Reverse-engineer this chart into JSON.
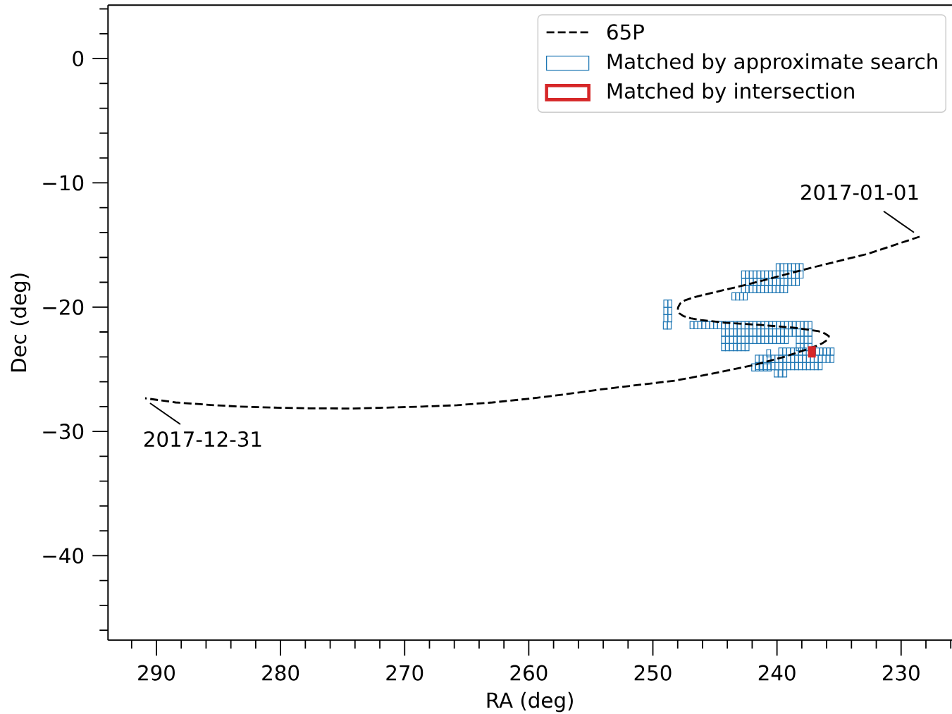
{
  "chart_data": {
    "type": "scatter",
    "xlabel": "RA (deg)",
    "ylabel": "Dec (deg)",
    "xlim": [
      293.9,
      225.9
    ],
    "ylim": [
      -46.8,
      4.3
    ],
    "xticks": [
      {
        "value": 292,
        "label": null
      },
      290,
      {
        "value": 288,
        "label": null
      },
      {
        "value": 286,
        "label": null
      },
      {
        "value": 284,
        "label": null
      },
      {
        "value": 282,
        "label": null
      },
      280,
      {
        "value": 278,
        "label": null
      },
      {
        "value": 276,
        "label": null
      },
      {
        "value": 274,
        "label": null
      },
      {
        "value": 272,
        "label": null
      },
      270,
      {
        "value": 268,
        "label": null
      },
      {
        "value": 266,
        "label": null
      },
      {
        "value": 264,
        "label": null
      },
      {
        "value": 262,
        "label": null
      },
      260,
      {
        "value": 258,
        "label": null
      },
      {
        "value": 256,
        "label": null
      },
      {
        "value": 254,
        "label": null
      },
      {
        "value": 252,
        "label": null
      },
      250,
      {
        "value": 248,
        "label": null
      },
      {
        "value": 246,
        "label": null
      },
      {
        "value": 244,
        "label": null
      },
      {
        "value": 242,
        "label": null
      },
      240,
      {
        "value": 238,
        "label": null
      },
      {
        "value": 236,
        "label": null
      },
      {
        "value": 234,
        "label": null
      },
      {
        "value": 232,
        "label": null
      },
      230,
      {
        "value": 228,
        "label": null
      },
      {
        "value": 226,
        "label": null
      }
    ],
    "yticks": [
      {
        "value": 4,
        "label": null
      },
      {
        "value": 2,
        "label": null
      },
      0,
      {
        "value": -2,
        "label": null
      },
      {
        "value": -4,
        "label": null
      },
      {
        "value": -6,
        "label": null
      },
      {
        "value": -8,
        "label": null
      },
      {
        "value": -10,
        "label": "−10"
      },
      {
        "value": -12,
        "label": null
      },
      {
        "value": -14,
        "label": null
      },
      {
        "value": -16,
        "label": null
      },
      {
        "value": -18,
        "label": null
      },
      {
        "value": -20,
        "label": "−20"
      },
      {
        "value": -22,
        "label": null
      },
      {
        "value": -24,
        "label": null
      },
      {
        "value": -26,
        "label": null
      },
      {
        "value": -28,
        "label": null
      },
      {
        "value": -30,
        "label": "−30"
      },
      {
        "value": -32,
        "label": null
      },
      {
        "value": -34,
        "label": null
      },
      {
        "value": -36,
        "label": null
      },
      {
        "value": -38,
        "label": null
      },
      {
        "value": -40,
        "label": "−40"
      },
      {
        "value": -42,
        "label": null
      },
      {
        "value": -44,
        "label": null
      },
      {
        "value": -46,
        "label": null
      }
    ],
    "legend": "top right",
    "series": [
      {
        "name": "65P",
        "type": "line",
        "color": "#000000",
        "line_style": "dashed",
        "x": [
          228.51,
          232.68,
          237.78,
          242.32,
          245.15,
          246.67,
          247.42,
          247.8,
          247.97,
          247.99,
          247.88,
          247.52,
          246.86,
          246.1,
          244.21,
          241.37,
          238.54,
          236.65,
          236.12,
          235.82,
          235.93,
          236.31,
          236.84,
          237.78,
          239.48,
          241.94,
          245.16,
          248.18,
          251.58,
          254.42,
          257.25,
          260.09,
          262.93,
          265.76,
          268.6,
          272.0,
          274.27,
          277.67,
          279.94,
          283.35,
          285.62,
          288.45,
          290.91
        ],
        "values": [
          -14.33,
          -15.71,
          -16.97,
          -18.16,
          -18.83,
          -19.2,
          -19.45,
          -19.71,
          -20.02,
          -20.24,
          -20.49,
          -20.73,
          -20.92,
          -21.04,
          -21.25,
          -21.43,
          -21.66,
          -21.94,
          -22.13,
          -22.34,
          -22.62,
          -22.89,
          -23.13,
          -23.46,
          -24.02,
          -24.68,
          -25.34,
          -25.91,
          -26.31,
          -26.65,
          -27.04,
          -27.38,
          -27.67,
          -27.89,
          -28.0,
          -28.1,
          -28.16,
          -28.14,
          -28.1,
          -28.0,
          -27.87,
          -27.67,
          -27.33
        ]
      },
      {
        "name": "Matched by approximate search",
        "color": "#1f77b4",
        "marker": "square",
        "x": [
          239.91,
          239.6,
          239.29,
          238.98,
          238.67,
          238.36,
          238.05,
          238.05,
          238.36,
          238.67,
          238.98,
          239.29,
          239.6,
          239.91,
          240.22,
          240.53,
          240.84,
          241.15,
          241.46,
          241.77,
          242.08,
          242.39,
          242.7,
          238.35,
          238.66,
          238.97,
          239.28,
          239.59,
          239.9,
          240.21,
          240.52,
          240.83,
          241.14,
          241.45,
          241.76,
          242.07,
          242.38,
          242.69,
          239.3,
          239.61,
          239.92,
          240.23,
          240.54,
          240.85,
          241.16,
          241.47,
          241.78,
          242.09,
          242.4,
          242.71,
          242.55,
          242.86,
          243.17,
          243.48,
          248.96,
          248.63,
          248.96,
          248.63,
          248.96,
          248.63,
          249.0,
          248.68,
          246.85,
          246.53,
          246.22,
          245.9,
          245.58,
          245.27,
          244.95,
          244.63,
          244.31,
          244.0,
          243.68,
          243.36,
          243.05,
          242.73,
          242.41,
          242.1,
          241.78,
          241.46,
          241.14,
          240.83,
          240.51,
          240.19,
          239.88,
          239.56,
          239.24,
          238.93,
          238.61,
          238.29,
          237.97,
          237.66,
          237.34,
          244.31,
          244.0,
          243.68,
          243.36,
          243.05,
          242.73,
          242.41,
          242.1,
          241.78,
          241.46,
          241.14,
          240.83,
          240.51,
          240.19,
          239.88,
          239.56,
          239.24,
          238.93,
          238.61,
          238.29,
          237.97,
          237.66,
          237.34,
          244.31,
          244.0,
          243.68,
          243.36,
          243.05,
          242.73,
          242.41,
          242.1,
          241.78,
          241.46,
          241.14,
          240.83,
          240.51,
          240.19,
          239.88,
          239.56,
          239.24,
          238.29,
          237.97,
          237.66,
          237.34,
          244.31,
          244.0,
          243.68,
          243.36,
          243.05,
          242.73,
          242.41,
          238.29,
          237.97,
          237.66,
          237.34,
          239.7,
          239.39,
          239.07,
          238.75,
          238.43,
          238.11,
          237.8,
          236.73,
          236.44,
          236.15,
          235.86,
          235.56,
          241.59,
          241.28,
          240.96,
          240.64,
          240.33,
          240.01,
          239.69,
          239.37,
          239.06,
          238.74,
          238.42,
          238.11,
          237.79,
          237.47,
          237.16,
          236.84,
          236.52,
          236.2,
          235.89,
          235.57,
          241.59,
          241.28,
          240.96,
          240.64,
          240.33,
          240.01,
          239.69,
          239.37,
          239.06,
          238.74,
          238.42,
          238.11,
          237.79,
          237.47,
          237.16,
          236.84,
          236.52,
          240.07,
          239.72,
          239.37,
          240.67,
          241.88,
          241.56,
          241.24,
          240.94,
          240.62
        ],
        "values": [
          -16.8,
          -16.8,
          -16.8,
          -16.8,
          -16.8,
          -16.8,
          -16.8,
          -17.38,
          -17.38,
          -17.38,
          -17.38,
          -17.38,
          -17.38,
          -17.38,
          -17.38,
          -17.38,
          -17.38,
          -17.38,
          -17.38,
          -17.38,
          -17.38,
          -17.38,
          -17.38,
          -17.97,
          -17.97,
          -17.97,
          -17.97,
          -17.97,
          -17.97,
          -17.97,
          -17.97,
          -17.97,
          -17.97,
          -17.97,
          -17.97,
          -17.97,
          -17.97,
          -17.97,
          -18.55,
          -18.55,
          -18.55,
          -18.55,
          -18.55,
          -18.55,
          -18.55,
          -18.55,
          -18.55,
          -18.55,
          -18.55,
          -18.55,
          -19.14,
          -19.14,
          -19.14,
          -19.14,
          -19.72,
          -19.72,
          -20.31,
          -20.31,
          -20.89,
          -20.89,
          -21.47,
          -21.47,
          -21.45,
          -21.45,
          -21.45,
          -21.45,
          -21.45,
          -21.45,
          -21.45,
          -21.45,
          -21.45,
          -21.45,
          -21.45,
          -21.45,
          -21.45,
          -21.45,
          -21.45,
          -21.45,
          -21.45,
          -21.45,
          -21.45,
          -21.45,
          -21.45,
          -21.45,
          -21.45,
          -21.45,
          -21.45,
          -21.45,
          -21.45,
          -21.45,
          -21.45,
          -21.45,
          -21.45,
          -22.05,
          -22.05,
          -22.05,
          -22.05,
          -22.05,
          -22.05,
          -22.05,
          -22.05,
          -22.05,
          -22.05,
          -22.05,
          -22.05,
          -22.05,
          -22.05,
          -22.05,
          -22.05,
          -22.05,
          -22.05,
          -22.05,
          -22.05,
          -22.05,
          -22.05,
          -22.05,
          -22.63,
          -22.63,
          -22.63,
          -22.63,
          -22.63,
          -22.63,
          -22.63,
          -22.63,
          -22.63,
          -22.63,
          -22.63,
          -22.63,
          -22.63,
          -22.63,
          -22.63,
          -22.63,
          -22.63,
          -22.63,
          -22.63,
          -22.63,
          -22.63,
          -23.22,
          -23.22,
          -23.22,
          -23.22,
          -23.22,
          -23.22,
          -23.22,
          -23.22,
          -23.22,
          -23.22,
          -23.22,
          -23.57,
          -23.57,
          -23.57,
          -23.57,
          -23.57,
          -23.57,
          -23.57,
          -23.57,
          -23.57,
          -23.57,
          -23.57,
          -23.57,
          -24.16,
          -24.16,
          -24.16,
          -24.16,
          -24.16,
          -24.16,
          -24.16,
          -24.16,
          -24.16,
          -24.16,
          -24.16,
          -24.16,
          -24.16,
          -24.16,
          -24.16,
          -24.16,
          -24.16,
          -24.16,
          -24.16,
          -24.16,
          -24.75,
          -24.75,
          -24.75,
          -24.75,
          -24.75,
          -24.75,
          -24.75,
          -24.75,
          -24.75,
          -24.75,
          -24.75,
          -24.75,
          -24.75,
          -24.75,
          -24.75,
          -24.75,
          -24.75,
          -25.33,
          -25.33,
          -25.33,
          -23.71,
          -24.85,
          -24.85,
          -24.85,
          -24.85,
          -24.85
        ]
      },
      {
        "name": "Matched by intersection",
        "color": "#d62728",
        "marker": "square",
        "x": [
          237.19
        ],
        "values": [
          -23.6
        ]
      }
    ],
    "annotations": [
      {
        "text": "2017-01-01",
        "x": 228.51,
        "y": -14.33
      },
      {
        "text": "2017-12-31",
        "x": 290.91,
        "y": -27.33
      }
    ]
  }
}
